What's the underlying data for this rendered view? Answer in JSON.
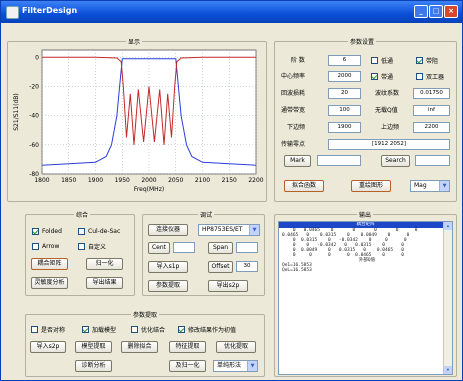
{
  "window": {
    "title": "FilterDesign"
  },
  "plot": {
    "group_title": "显示",
    "xlabel": "Freq(MHz)",
    "ylabel": "S21/S11(dB)",
    "y_ticks": [
      "0",
      "-20",
      "-40",
      "-60",
      "-80"
    ],
    "x_ticks": [
      "1800",
      "1850",
      "1900",
      "1950",
      "2000",
      "2050",
      "2100",
      "2150",
      "2200"
    ]
  },
  "chart_data": {
    "type": "line",
    "xlabel": "Freq(MHz)",
    "ylabel": "S21/S11(dB)",
    "xlim": [
      1800,
      2200
    ],
    "ylim": [
      -80,
      5
    ],
    "grid": true,
    "series": [
      {
        "color": "#2b3ddb",
        "x": [
          1800,
          1850,
          1900,
          1920,
          1930,
          1940,
          1945,
          1950,
          2050,
          2055,
          2060,
          2070,
          2080,
          2100,
          2150,
          2200
        ],
        "y": [
          -74,
          -73,
          -72,
          -68,
          -60,
          -40,
          -20,
          -1,
          -1,
          -20,
          -40,
          -60,
          -68,
          -72,
          -73,
          -74
        ]
      },
      {
        "color": "#c42a2a",
        "x": [
          1800,
          1900,
          1940,
          1948,
          1952,
          1958,
          1965,
          1972,
          1980,
          1990,
          2000,
          2010,
          2020,
          2028,
          2035,
          2042,
          2048,
          2052,
          2060,
          2100,
          2200
        ],
        "y": [
          0,
          0,
          -0.5,
          -3,
          -20,
          -55,
          -25,
          -60,
          -22,
          -58,
          -20,
          -58,
          -22,
          -60,
          -25,
          -55,
          -20,
          -3,
          -0.5,
          0,
          0
        ]
      }
    ]
  },
  "params": {
    "group_title": "参数设置",
    "order_label": "阶 数",
    "order_value": "6",
    "center_label": "中心频率",
    "center_value": "2000",
    "bw_label": "回波损耗",
    "bw_value": "20",
    "passband_label": "通带带宽",
    "passband_value": "100",
    "lower_label": "下边频",
    "lower_value": "1900",
    "upper_label": "上边频",
    "upper_value": "2200",
    "coupling_label": "波纹系数",
    "coupling_value": "0.01750",
    "noQ_label": "无载Q值",
    "noQ_value": "inf",
    "tz_label": "传输零点",
    "tz_value": "[1912 2052]",
    "cb_lowpass": "低通",
    "cb_bandstop": "带阻",
    "cb_bandpass": "带通",
    "cb_bandstop2": "双工器",
    "mark_label": "Mark",
    "search_label": "Search",
    "fit_btn": "拟合函数",
    "redraw_btn": "重绘图形",
    "mag_option": "Mag"
  },
  "synth": {
    "group_title": "综合",
    "folded": "Folded",
    "cul": "Cul-de-Sac",
    "arrow": "Arrow",
    "custom": "自定义",
    "btn_a": "耦合矩阵",
    "btn_b": "归一化",
    "btn_c": "灵敏度分析",
    "btn_d": "导出结果"
  },
  "tune": {
    "group_title": "调试",
    "btn_connect": "连接仪器",
    "model_value": "HP8753ES/ET",
    "cent_label": "Cent",
    "span_label": "Span",
    "import_label": "导入s1p",
    "offset_label": "Offset",
    "offset_value": "30",
    "extract_btn": "参数提取",
    "export_btn": "导出s2p"
  },
  "output": {
    "group_title": "输出",
    "header": "耦合矩阵",
    "rows": [
      "    0   0.0465    0       0       0       0      0",
      "0.0465   0    0.0315    0    0.0049    0      0",
      "    0  0.0315    0   -0.0342    0     0      0",
      "    0    0   -0.0342   0   0.0315    0      0",
      "    0  0.0049    0   0.0315   0    0.0465   0",
      "    0     0      0      0  0.0465    0      0"
    ],
    "subheader": "外部Q值",
    "q_rows": [
      "Qe1=16.5853",
      "QeL=16.5853"
    ]
  },
  "extract": {
    "group_title": "参数提取",
    "cb1": "是否对称",
    "cb2": "加载模型",
    "cb3": "优化结合",
    "cb4": "修改结果作为初值",
    "btn1": "导入s2p",
    "btn2": "模型提取",
    "btn3": "删除拟合",
    "btn4": "特征提取",
    "btn5": "优化提取",
    "btn6": "诊断分析",
    "btn7": "及归一化",
    "method": "单纯形法"
  }
}
